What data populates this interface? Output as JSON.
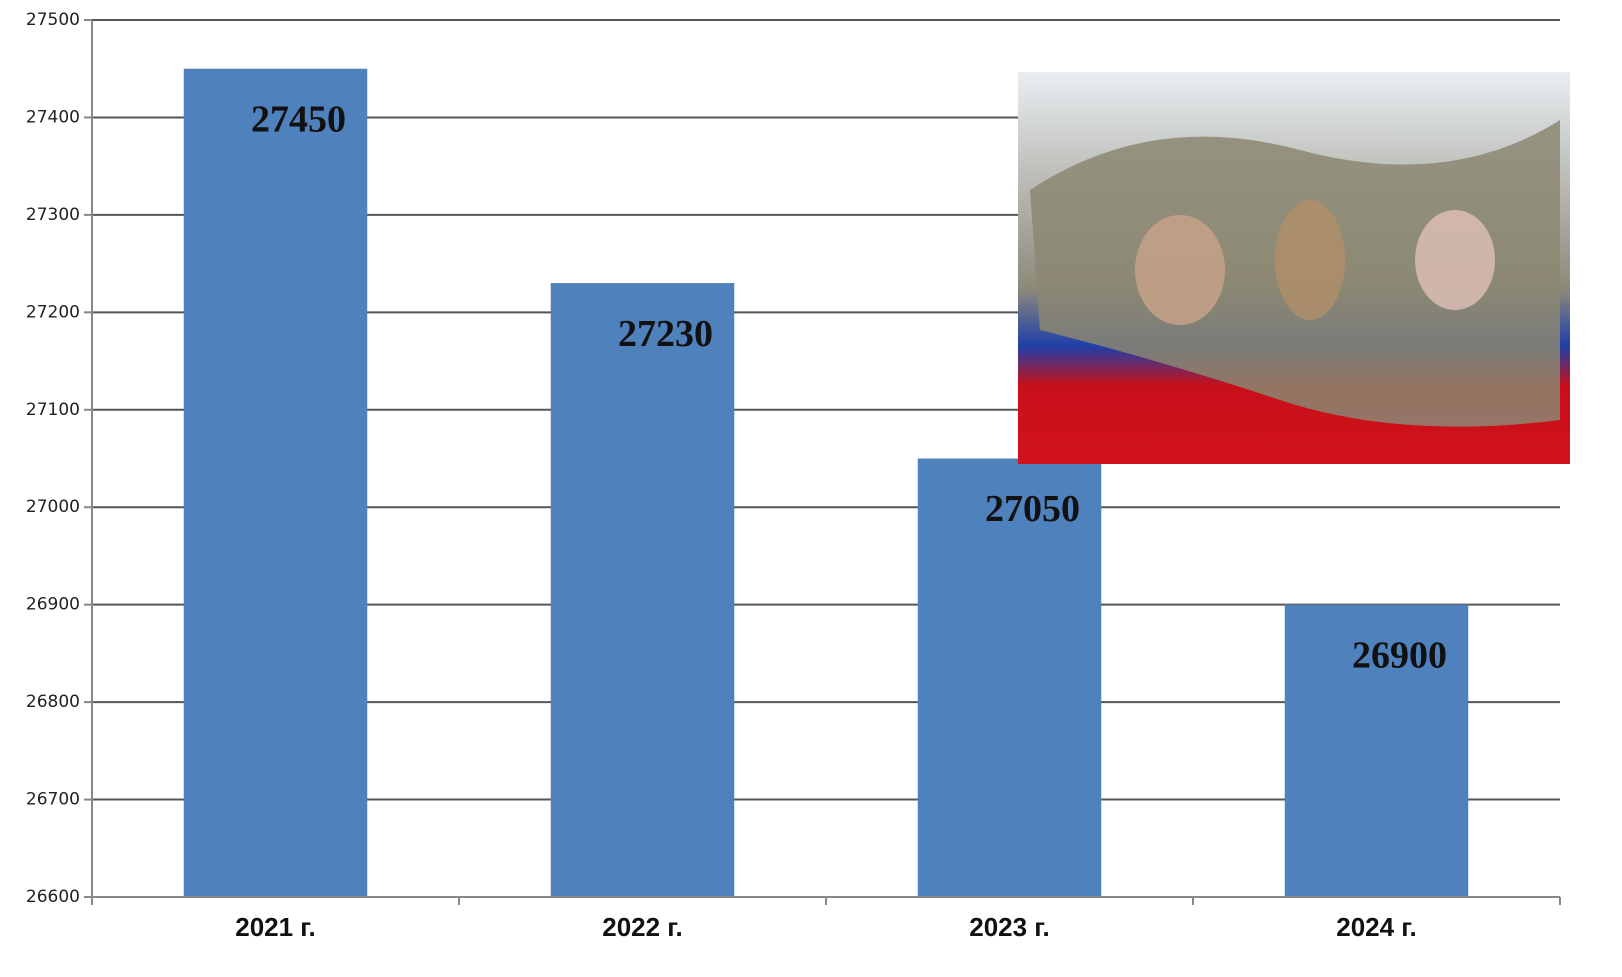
{
  "chart_data": {
    "type": "bar",
    "categories": [
      "2021 г.",
      "2022 г.",
      "2023 г.",
      "2024 г."
    ],
    "values": [
      27450,
      27230,
      27050,
      26900
    ],
    "color": "#4f81bd",
    "ylim": [
      26600,
      27500
    ],
    "yticks": [
      26600,
      26700,
      26800,
      26900,
      27000,
      27100,
      27200,
      27300,
      27400,
      27500
    ],
    "grid": true
  }
}
